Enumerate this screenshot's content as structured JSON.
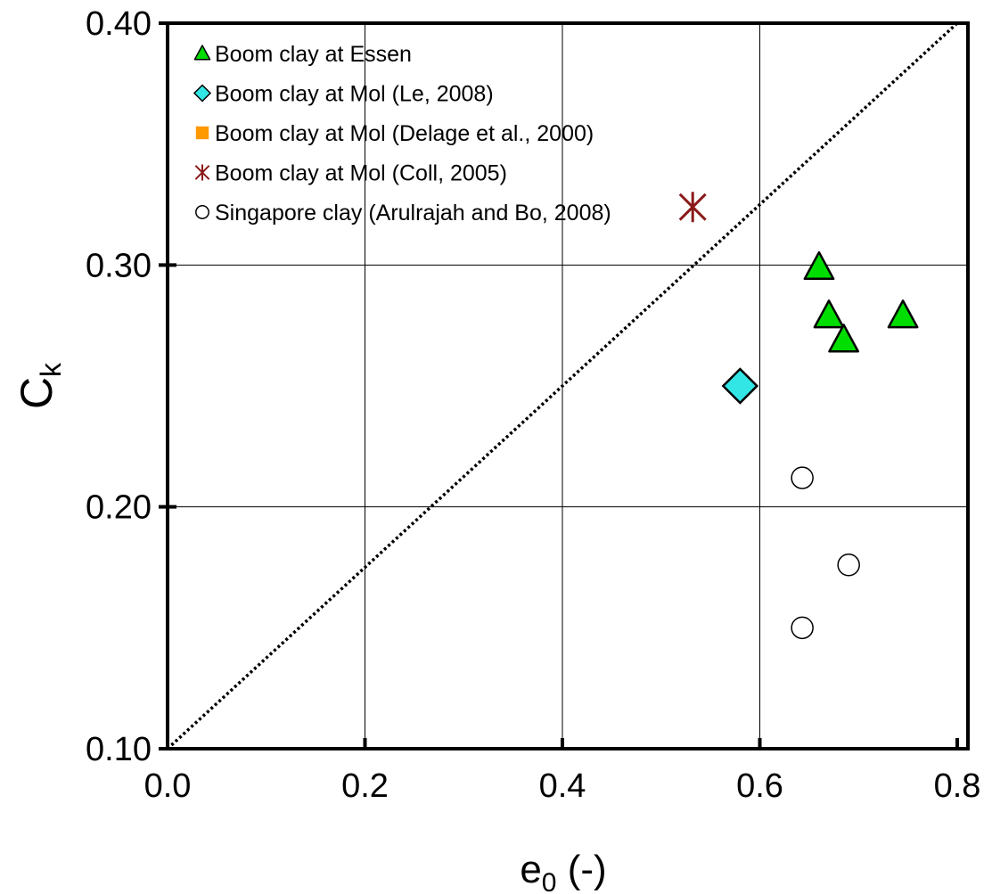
{
  "chart_data": {
    "type": "scatter",
    "title": "",
    "xlabel": "e",
    "xlabel_sub": "0",
    "xlabel_suffix": " (-)",
    "ylabel": "C",
    "ylabel_sub": "k",
    "xlim": [
      0.0,
      0.8
    ],
    "ylim": [
      0.1,
      0.4
    ],
    "xticks": [
      0.0,
      0.2,
      0.4,
      0.6,
      0.8
    ],
    "xtick_labels": [
      "0.0",
      "0.2",
      "0.4",
      "0.6",
      "0.8"
    ],
    "yticks": [
      0.1,
      0.2,
      0.3,
      0.4
    ],
    "ytick_labels": [
      "0.10",
      "0.20",
      "0.30",
      "0.40"
    ],
    "grid": true,
    "legend_position": "top-left",
    "reference_line": {
      "style": "dotted",
      "points": [
        [
          0.0,
          0.1
        ],
        [
          0.8,
          0.4
        ]
      ]
    },
    "series": [
      {
        "name": "Boom clay at Essen",
        "marker": "triangle",
        "color": "#00dd00",
        "points": [
          [
            0.66,
            0.299
          ],
          [
            0.67,
            0.279
          ],
          [
            0.685,
            0.269
          ],
          [
            0.745,
            0.279
          ]
        ]
      },
      {
        "name": "Boom clay at Mol (Le, 2008)",
        "marker": "diamond",
        "color": "#33e6e6",
        "points": [
          [
            0.58,
            0.25
          ]
        ]
      },
      {
        "name": "Boom clay at Mol (Delage et al., 2000)",
        "marker": "square",
        "color": "#ff9900",
        "points": []
      },
      {
        "name": "Boom clay at Mol (Coll, 2005)",
        "marker": "asterisk",
        "color": "#8b1a1a",
        "points": [
          [
            0.532,
            0.324
          ]
        ]
      },
      {
        "name": "Singapore clay (Arulrajah and Bo, 2008)",
        "marker": "circle",
        "color": "#ffffff",
        "points": [
          [
            0.643,
            0.212
          ],
          [
            0.69,
            0.176
          ],
          [
            0.643,
            0.15
          ]
        ]
      }
    ]
  }
}
